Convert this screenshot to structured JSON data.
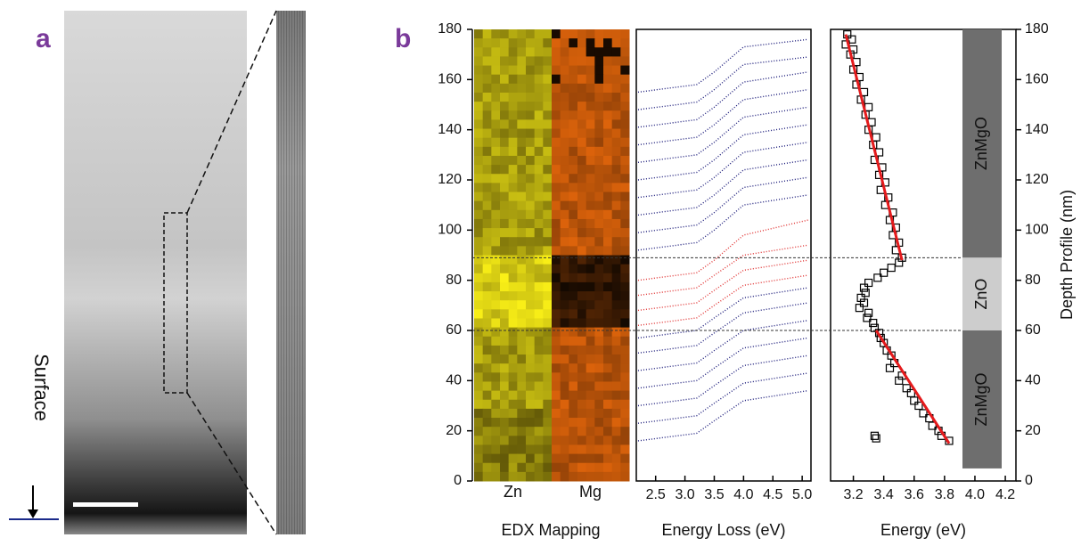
{
  "labels": {
    "a": "a",
    "b": "b",
    "surface": "Surface"
  },
  "chart_data": [
    {
      "type": "image",
      "title": "EDX Mapping",
      "categories": [
        "Zn",
        "Mg"
      ],
      "ylim": [
        0,
        180
      ],
      "yticks": [
        0,
        20,
        40,
        60,
        80,
        100,
        120,
        140,
        160,
        180
      ]
    },
    {
      "type": "line",
      "x_label": "Energy Loss (eV)",
      "xlim": [
        2.17,
        5.15
      ],
      "xticks": [
        2.5,
        {
          "value": 3,
          "label": "3.0"
        },
        3.5,
        {
          "value": 4,
          "label": "4.0"
        },
        4.5,
        {
          "value": 5,
          "label": "5.0"
        }
      ],
      "ylim": [
        0,
        180
      ],
      "x": [
        2.2,
        3.2,
        3.5,
        4.0,
        5.1
      ],
      "series": [
        {
          "color": "#1a1a7a",
          "values": [
            16,
            19,
            24,
            32,
            36
          ]
        },
        {
          "color": "#1a1a7a",
          "values": [
            23,
            26,
            31,
            39,
            43
          ]
        },
        {
          "color": "#1a1a7a",
          "values": [
            30,
            33,
            38,
            46,
            50
          ]
        },
        {
          "color": "#1a1a7a",
          "values": [
            37,
            40,
            45,
            53,
            57
          ]
        },
        {
          "color": "#1a1a7a",
          "values": [
            44,
            47,
            52,
            60,
            64
          ]
        },
        {
          "color": "#1a1a7a",
          "values": [
            51,
            54,
            59,
            67,
            71
          ]
        },
        {
          "color": "#1a1a7a",
          "values": [
            57,
            60,
            65,
            73,
            77
          ]
        },
        {
          "color": "#e03030",
          "values": [
            62,
            65,
            70,
            78,
            82
          ]
        },
        {
          "color": "#e03030",
          "values": [
            68,
            71,
            76,
            84,
            88
          ]
        },
        {
          "color": "#e03030",
          "values": [
            74,
            77,
            82,
            90,
            94
          ]
        },
        {
          "color": "#e03030",
          "values": [
            80,
            83,
            88,
            98,
            104
          ]
        },
        {
          "color": "#1a1a7a",
          "values": [
            92,
            95,
            100,
            110,
            114
          ]
        },
        {
          "color": "#1a1a7a",
          "values": [
            99,
            102,
            107,
            117,
            121
          ]
        },
        {
          "color": "#1a1a7a",
          "values": [
            106,
            109,
            114,
            124,
            128
          ]
        },
        {
          "color": "#1a1a7a",
          "values": [
            113,
            116,
            121,
            131,
            135
          ]
        },
        {
          "color": "#1a1a7a",
          "values": [
            120,
            123,
            128,
            138,
            142
          ]
        },
        {
          "color": "#1a1a7a",
          "values": [
            127,
            130,
            135,
            145,
            149
          ]
        },
        {
          "color": "#1a1a7a",
          "values": [
            134,
            137,
            142,
            152,
            156
          ]
        },
        {
          "color": "#1a1a7a",
          "values": [
            141,
            144,
            149,
            159,
            163
          ]
        },
        {
          "color": "#1a1a7a",
          "values": [
            148,
            151,
            156,
            166,
            169
          ]
        },
        {
          "color": "#1a1a7a",
          "values": [
            155,
            158,
            163,
            173,
            176
          ]
        }
      ]
    },
    {
      "type": "scatter",
      "x_label": "Energy (eV)",
      "y_label": "Depth Profile (nm)",
      "xlim": [
        3.05,
        4.27
      ],
      "xticks": [
        3.2,
        3.4,
        3.6,
        3.8,
        {
          "value": 4,
          "label": "4.0"
        },
        4.2
      ],
      "ylim": [
        0,
        180
      ],
      "yticks": [
        0,
        20,
        40,
        60,
        80,
        100,
        120,
        140,
        160,
        180
      ],
      "x": [
        3.16,
        3.19,
        3.15,
        3.2,
        3.18,
        3.22,
        3.2,
        3.24,
        3.22,
        3.27,
        3.25,
        3.3,
        3.28,
        3.32,
        3.3,
        3.35,
        3.33,
        3.37,
        3.34,
        3.39,
        3.37,
        3.41,
        3.38,
        3.43,
        3.41,
        3.46,
        3.44,
        3.48,
        3.46,
        3.5,
        3.48,
        3.52,
        3.5,
        3.45,
        3.4,
        3.36,
        3.3,
        3.27,
        3.28,
        3.25,
        3.27,
        3.24,
        3.3,
        3.29,
        3.33,
        3.34,
        3.37,
        3.38,
        3.4,
        3.42,
        3.45,
        3.47,
        3.44,
        3.52,
        3.5,
        3.55,
        3.58,
        3.6,
        3.63,
        3.66,
        3.7,
        3.72,
        3.76,
        3.78,
        3.83,
        3.35,
        3.34
      ],
      "values": [
        178,
        176,
        174,
        172,
        170,
        167,
        164,
        161,
        158,
        155,
        152,
        149,
        146,
        143,
        140,
        137,
        134,
        131,
        128,
        125,
        122,
        119,
        116,
        113,
        110,
        107,
        104,
        101,
        98,
        95,
        92,
        89,
        87,
        85,
        83,
        81,
        79,
        77,
        75,
        73,
        71,
        69,
        67,
        65,
        63,
        61,
        59,
        57,
        55,
        52,
        50,
        47,
        45,
        42,
        40,
        37,
        35,
        32,
        30,
        27,
        25,
        22,
        20,
        18,
        16,
        17,
        18
      ],
      "fits": [
        {
          "color": "#e41a1c",
          "x": [
            3.15,
            3.52
          ],
          "values": [
            178,
            88
          ]
        },
        {
          "color": "#e41a1c",
          "x": [
            3.35,
            3.83
          ],
          "values": [
            60,
            15
          ]
        }
      ],
      "layers": [
        {
          "label": "ZnMgO",
          "from": 89,
          "to": 180,
          "color": "#6e6e6e"
        },
        {
          "label": "ZnO",
          "from": 60,
          "to": 89,
          "color": "#cdcdcd"
        },
        {
          "label": "ZnMgO",
          "from": 5,
          "to": 60,
          "color": "#6e6e6e"
        }
      ]
    }
  ]
}
